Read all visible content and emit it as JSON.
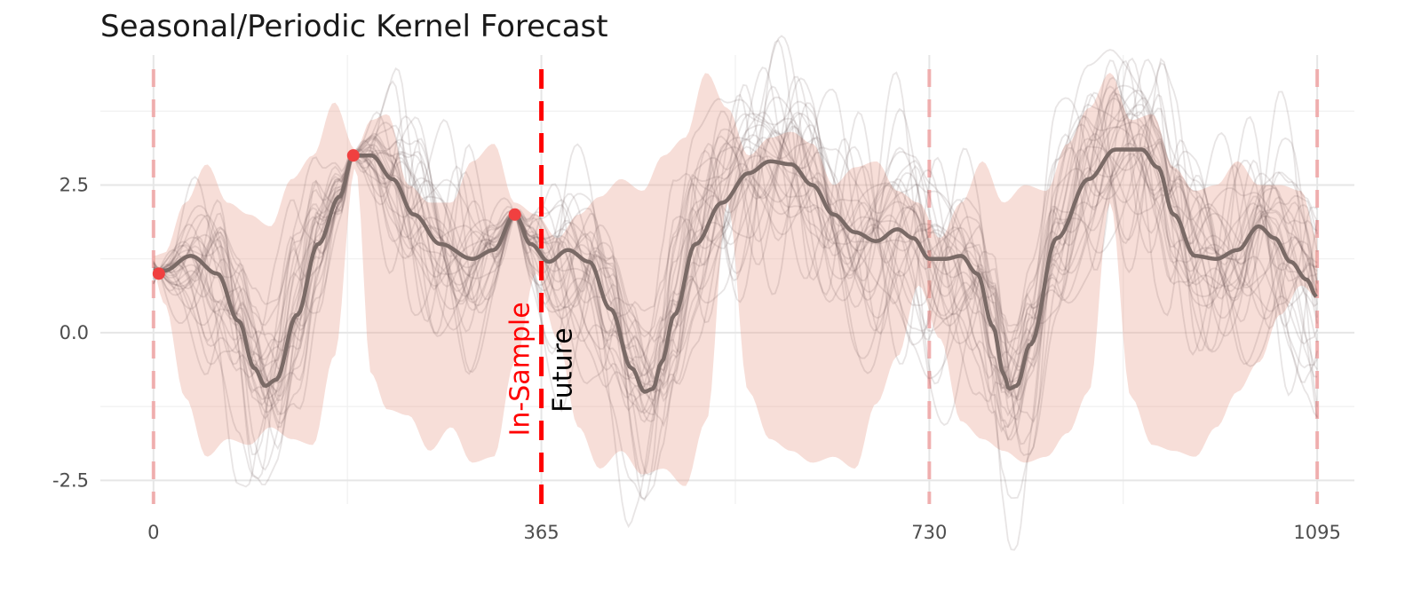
{
  "chart_data": {
    "type": "line",
    "title": "Seasonal/Periodic Kernel Forecast",
    "xlabel": "",
    "ylabel": "",
    "xlim": [
      -50,
      1130
    ],
    "ylim": [
      -2.9,
      4.7
    ],
    "x_ticks": [
      0,
      365,
      730,
      1095
    ],
    "x_tick_labels": [
      "0",
      "365",
      "730",
      "1095"
    ],
    "y_ticks": [
      -2.5,
      0.0,
      2.5
    ],
    "y_tick_labels": [
      "-2.5",
      "0.0",
      "2.5"
    ],
    "grid": true,
    "legend": "none",
    "colors": {
      "band": "#e8a090",
      "mean": "#7a6a66",
      "samples": "#5a4a48",
      "observed": "#f04040",
      "forecast_line": "#ff0000",
      "period_lines": "#f0a0a0"
    },
    "annotations": {
      "in_sample": "In-Sample",
      "future": "Future",
      "forecast_start_x": 365
    },
    "period_boundaries": [
      0,
      730,
      1095
    ],
    "observed_points": [
      {
        "x": 5,
        "y": 1.0
      },
      {
        "x": 188,
        "y": 3.0
      },
      {
        "x": 340,
        "y": 2.0
      }
    ],
    "mean_series": {
      "x": [
        0,
        10,
        35,
        60,
        80,
        95,
        105,
        115,
        135,
        155,
        175,
        188,
        205,
        225,
        245,
        270,
        300,
        320,
        340,
        355,
        372,
        390,
        410,
        430,
        450,
        462,
        470,
        478,
        490,
        510,
        535,
        560,
        580,
        600,
        620,
        640,
        660,
        680,
        700,
        715,
        730,
        745,
        760,
        775,
        790,
        800,
        805,
        812,
        825,
        850,
        880,
        905,
        930,
        945,
        960,
        980,
        1000,
        1020,
        1040,
        1055,
        1070,
        1085,
        1095
      ],
      "y": [
        1.05,
        1.05,
        1.3,
        1.0,
        0.2,
        -0.6,
        -0.9,
        -0.8,
        0.3,
        1.5,
        2.3,
        3.0,
        3.0,
        2.6,
        2.0,
        1.5,
        1.25,
        1.4,
        2.0,
        1.5,
        1.2,
        1.4,
        1.2,
        0.4,
        -0.6,
        -1.0,
        -0.95,
        -0.5,
        0.3,
        1.5,
        2.2,
        2.7,
        2.9,
        2.85,
        2.5,
        2.0,
        1.7,
        1.55,
        1.75,
        1.6,
        1.25,
        1.25,
        1.3,
        1.0,
        0.1,
        -0.7,
        -0.95,
        -0.9,
        -0.2,
        1.6,
        2.6,
        3.1,
        3.1,
        2.8,
        2.0,
        1.3,
        1.25,
        1.4,
        1.8,
        1.6,
        1.2,
        0.9,
        0.6
      ]
    },
    "band_upper": {
      "x": [
        0,
        10,
        30,
        50,
        70,
        90,
        110,
        130,
        150,
        170,
        190,
        205,
        220,
        240,
        260,
        280,
        300,
        320,
        340,
        360,
        380,
        400,
        420,
        440,
        460,
        480,
        500,
        520,
        540,
        560,
        580,
        600,
        620,
        640,
        660,
        680,
        700,
        720,
        740,
        760,
        780,
        800,
        820,
        840,
        860,
        880,
        900,
        920,
        940,
        960,
        980,
        1000,
        1020,
        1040,
        1060,
        1080,
        1095
      ],
      "y": [
        1.3,
        1.35,
        2.2,
        2.85,
        2.2,
        2.0,
        1.8,
        2.6,
        3.0,
        3.9,
        3.1,
        3.6,
        3.7,
        2.5,
        2.2,
        2.2,
        2.9,
        3.2,
        2.2,
        2.0,
        1.6,
        2.0,
        2.3,
        2.6,
        2.4,
        3.0,
        3.3,
        4.4,
        3.8,
        3.0,
        3.3,
        3.4,
        3.2,
        2.5,
        2.8,
        2.9,
        2.4,
        2.2,
        1.6,
        2.2,
        2.9,
        2.2,
        2.5,
        2.4,
        3.2,
        3.8,
        4.4,
        3.6,
        3.7,
        2.8,
        2.4,
        2.5,
        2.9,
        2.5,
        2.5,
        2.4,
        1.6
      ]
    },
    "band_lower": {
      "x": [
        0,
        10,
        30,
        50,
        70,
        90,
        110,
        130,
        150,
        170,
        190,
        205,
        220,
        240,
        260,
        280,
        300,
        320,
        340,
        360,
        380,
        400,
        420,
        440,
        460,
        480,
        500,
        520,
        540,
        560,
        580,
        600,
        620,
        640,
        660,
        680,
        700,
        720,
        740,
        760,
        780,
        800,
        820,
        840,
        860,
        880,
        900,
        920,
        940,
        960,
        980,
        1000,
        1020,
        1040,
        1060,
        1080,
        1095
      ],
      "y": [
        1.0,
        0.5,
        -1.1,
        -2.1,
        -1.8,
        -1.9,
        -1.6,
        -1.8,
        -1.9,
        -0.4,
        2.8,
        -0.7,
        -1.3,
        -1.4,
        -2.0,
        -1.6,
        -2.2,
        -2.1,
        -0.5,
        1.0,
        -0.1,
        -1.6,
        -2.3,
        -2.0,
        -2.4,
        -2.3,
        -2.6,
        -1.5,
        2.2,
        -1.0,
        -1.8,
        -2.0,
        -2.2,
        -2.1,
        -2.3,
        -1.2,
        -0.4,
        0.8,
        -0.1,
        -1.5,
        -1.8,
        -2.0,
        -2.2,
        -2.1,
        -1.7,
        -1.0,
        2.2,
        -1.1,
        -1.9,
        -2.0,
        -2.1,
        -1.6,
        -1.0,
        -0.5,
        0.3,
        0.8,
        0.6
      ]
    }
  }
}
